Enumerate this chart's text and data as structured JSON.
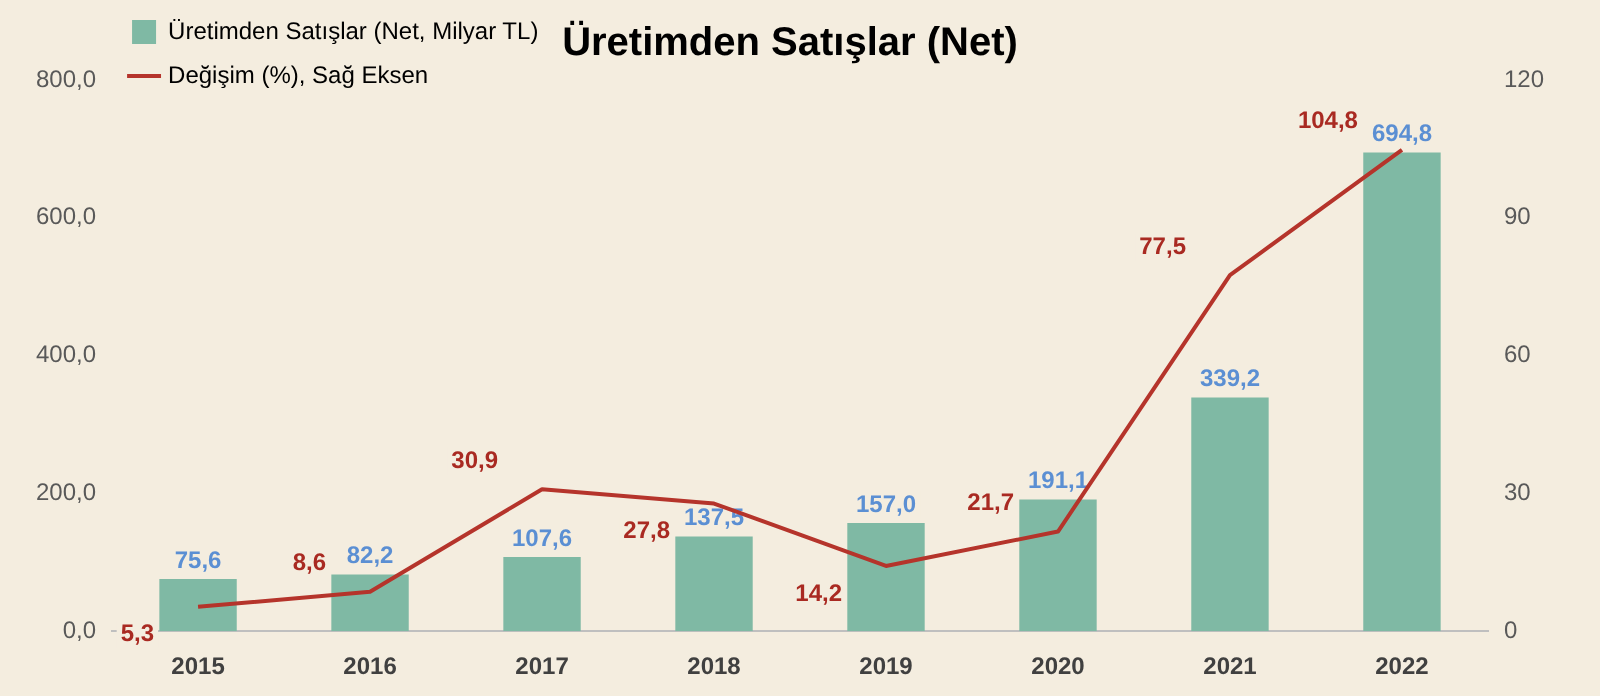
{
  "chart_data": {
    "type": "bar",
    "title": "Üretimden Satışlar (Net)",
    "categories": [
      "2015",
      "2016",
      "2017",
      "2018",
      "2019",
      "2020",
      "2021",
      "2022"
    ],
    "series": [
      {
        "name": "Üretimden Satışlar (Net, Milyar TL)",
        "color": "#7fb9a4",
        "values": [
          75.6,
          82.2,
          107.6,
          137.5,
          157.0,
          191.1,
          339.2,
          694.8
        ],
        "value_labels": [
          "75,6",
          "82,2",
          "107,6",
          "137,5",
          "157,0",
          "191,1",
          "339,2",
          "694,8"
        ]
      },
      {
        "name": "Değişim (%), Sağ Eksen",
        "type": "line",
        "axis": "y2",
        "color": "#b5342b",
        "values": [
          5.3,
          8.6,
          30.9,
          27.8,
          14.2,
          21.7,
          77.5,
          104.8
        ],
        "value_labels": [
          "5,3",
          "8,6",
          "30,9",
          "27,8",
          "14,2",
          "21,7",
          "77,5",
          "104,8"
        ]
      }
    ],
    "ylim": [
      0,
      800
    ],
    "yticks": [
      {
        "value": 0,
        "label": "0,0"
      },
      {
        "value": 200,
        "label": "200,0"
      },
      {
        "value": 400,
        "label": "400,0"
      },
      {
        "value": 600,
        "label": "600,0"
      },
      {
        "value": 800,
        "label": "800,0"
      }
    ],
    "y2lim": [
      0,
      120
    ],
    "y2ticks": [
      0,
      30,
      60,
      90,
      120
    ],
    "grid": false,
    "legend": "top left",
    "marker": "none",
    "line_style": "solid"
  }
}
